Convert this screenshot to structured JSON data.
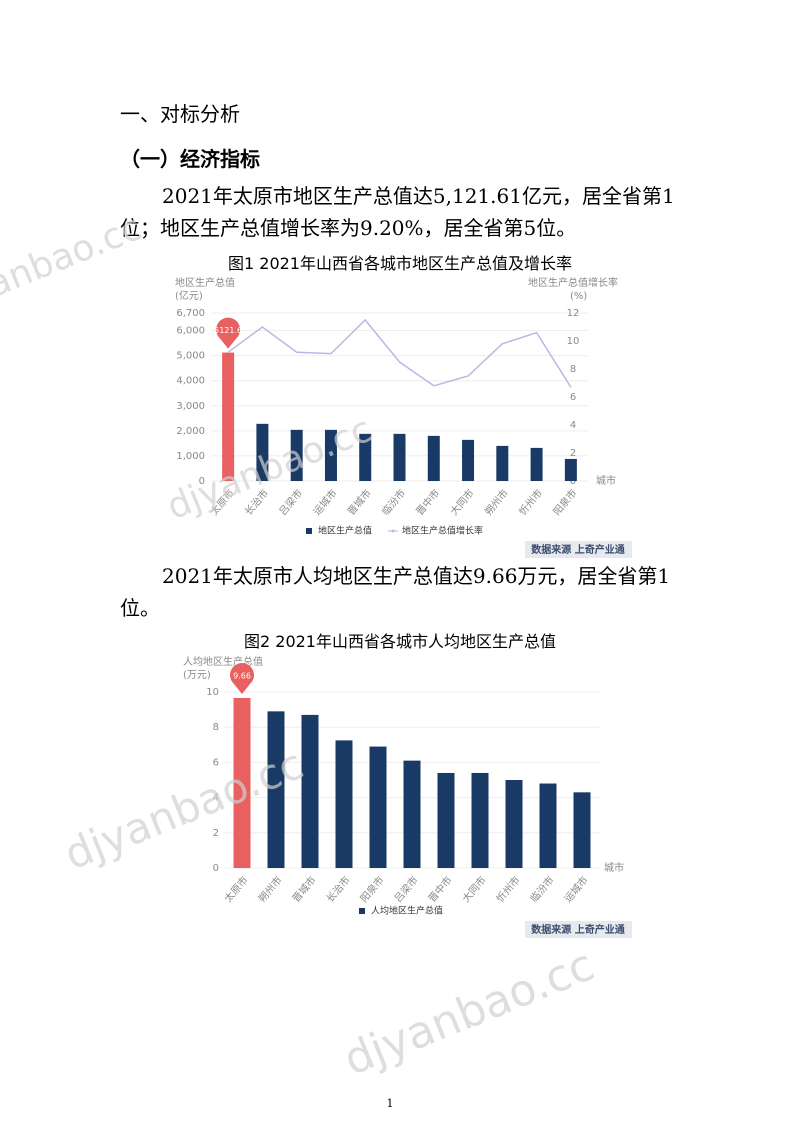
{
  "heading": "一、对标分析",
  "subheading": "（一）经济指标",
  "paragraphs": [
    "2021年太原市地区生产总值达5,121.61亿元，居全省第1位；地区生产总值增长率为9.20%，居全省第5位。",
    "2021年太原市人均地区生产总值达9.66万元，居全省第1位。"
  ],
  "watermark": "djyanbao.cc",
  "page_number": "1",
  "chart_data": [
    {
      "type": "combo",
      "title": "图1 2021年山西省各城市地区生产总值及增长率",
      "y_label": [
        "地区生产总值",
        "(亿元)"
      ],
      "y2_label": [
        "地区生产总值增长率",
        "(%)"
      ],
      "x_label": "城市",
      "source": "数据来源 上奇产业通",
      "categories": [
        "太原市",
        "长治市",
        "吕梁市",
        "运城市",
        "晋城市",
        "临汾市",
        "晋中市",
        "大同市",
        "朔州市",
        "忻州市",
        "阳泉市"
      ],
      "series": [
        {
          "name": "地区生产总值",
          "kind": "bar",
          "color": "#1a3a66",
          "highlight_color": "#e8605f",
          "values": [
            5121.61,
            2280,
            2040,
            2040,
            1880,
            1880,
            1800,
            1640,
            1400,
            1320,
            880
          ],
          "value_labels": [
            "5121.6",
            null,
            null,
            null,
            null,
            null,
            null,
            null,
            null,
            null,
            null
          ]
        },
        {
          "name": "地区生产总值增长率",
          "kind": "line",
          "axis": "y2",
          "color": "#b9b8e0",
          "values": [
            9.2,
            11.0,
            9.2,
            9.1,
            11.5,
            8.5,
            6.8,
            7.5,
            9.8,
            10.6,
            6.7
          ]
        }
      ],
      "ylim": [
        0,
        6700
      ],
      "yticks": [
        0,
        {
          "value": 1000,
          "label": "1,000"
        },
        {
          "value": 2000,
          "label": "2,000"
        },
        {
          "value": 3000,
          "label": "3,000"
        },
        {
          "value": 4000,
          "label": "4,000"
        },
        {
          "value": 5000,
          "label": "5,000"
        },
        {
          "value": 6000,
          "label": "6,000"
        },
        {
          "value": 6700,
          "label": "6,700"
        }
      ],
      "y2lim": [
        0,
        12
      ],
      "y2ticks": [
        0,
        2,
        4,
        6,
        8,
        10,
        12
      ],
      "grid": true
    },
    {
      "type": "bar",
      "title": "图2 2021年山西省各城市人均地区生产总值",
      "y_label": [
        "人均地区生产总值",
        "(万元)"
      ],
      "x_label": "城市",
      "source": "数据来源 上奇产业通",
      "categories": [
        "太原市",
        "朔州市",
        "晋城市",
        "长治市",
        "阳泉市",
        "吕梁市",
        "晋中市",
        "大同市",
        "忻州市",
        "临汾市",
        "运城市"
      ],
      "series": [
        {
          "name": "人均地区生产总值",
          "kind": "bar",
          "color": "#1a3a66",
          "highlight_color": "#e8605f",
          "values": [
            9.66,
            8.9,
            8.7,
            7.25,
            6.9,
            6.1,
            5.4,
            5.4,
            5.0,
            4.8,
            4.3
          ],
          "value_labels": [
            "9.66",
            null,
            null,
            null,
            null,
            null,
            null,
            null,
            null,
            null,
            null
          ]
        }
      ],
      "ylim": [
        0,
        10
      ],
      "yticks": [
        0,
        2,
        4,
        6,
        8,
        10
      ],
      "grid": true
    }
  ]
}
